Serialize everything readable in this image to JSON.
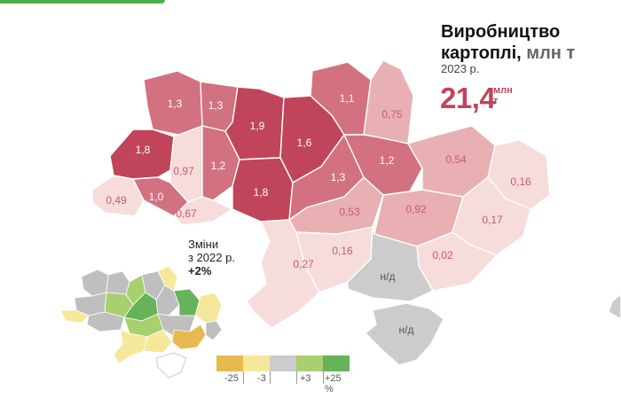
{
  "title": {
    "line1": "Виробництво",
    "line2": "картоплі,",
    "unit": "млн т",
    "year": "2023 р."
  },
  "total": {
    "value": "21,4",
    "unit_line1": "млн",
    "unit_line2": "т"
  },
  "changes": {
    "line1": "Зміни",
    "line2": "з 2022 р.",
    "value": "+2%"
  },
  "regions": [
    {
      "label": "1,3"
    },
    {
      "label": "1,3"
    },
    {
      "label": "1,9"
    },
    {
      "label": "1,6"
    },
    {
      "label": "1,1"
    },
    {
      "label": "0,75"
    },
    {
      "label": "1,8"
    },
    {
      "label": "0,97"
    },
    {
      "label": "1,2"
    },
    {
      "label": "1,8"
    },
    {
      "label": "1,3"
    },
    {
      "label": "1,2"
    },
    {
      "label": "0,54"
    },
    {
      "label": "0,16"
    },
    {
      "label": "0,49"
    },
    {
      "label": "1,0"
    },
    {
      "label": "0,67"
    },
    {
      "label": "0,53"
    },
    {
      "label": "0,92"
    },
    {
      "label": "0,17"
    },
    {
      "label": "0,27"
    },
    {
      "label": "0,16"
    },
    {
      "label": "0,02"
    },
    {
      "label": "н/д"
    },
    {
      "label": "н/д"
    }
  ],
  "legend": {
    "colors": [
      "#e8b94f",
      "#f6e89a",
      "#cccccc",
      "#a9cf6f",
      "#66b35a"
    ],
    "ticks": [
      "-25",
      "-3",
      "+3",
      "+25 %"
    ]
  },
  "colors": {
    "dark": "#c0455a",
    "mid": "#d27180",
    "light": "#e8b0b3",
    "pale": "#f6dcdb",
    "nodata": "#cccccc"
  }
}
